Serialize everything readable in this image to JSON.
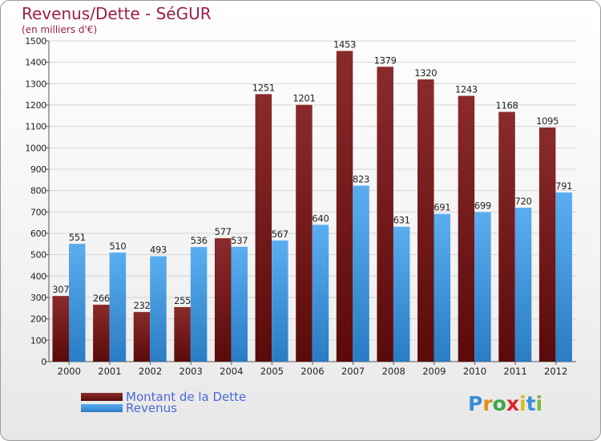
{
  "title": "Revenus/Dette - SéGUR",
  "subtitle": "(en milliers d'€)",
  "colors": {
    "debt_top": "#8a2b2b",
    "debt_bottom": "#5a0a0a",
    "revenue_top": "#5aaef0",
    "revenue_bottom": "#2a7cc4",
    "title": "#9b1f4a",
    "legend_text": "#4a68d8"
  },
  "logo": {
    "letters": [
      "P",
      "r",
      "o",
      "x",
      "i",
      "t",
      "i"
    ],
    "colors": [
      "#3a8fd6",
      "#e08a1e",
      "#3aa84a",
      "#d8252b",
      "#e0b81e",
      "#3a8fd6",
      "#7ab83a"
    ]
  },
  "chart_data": {
    "type": "bar",
    "categories": [
      "2000",
      "2001",
      "2002",
      "2003",
      "2004",
      "2005",
      "2006",
      "2007",
      "2008",
      "2009",
      "2010",
      "2011",
      "2012"
    ],
    "series": [
      {
        "name": "Montant de la Dette",
        "values": [
          307,
          266,
          232,
          255,
          577,
          1251,
          1201,
          1453,
          1379,
          1320,
          1243,
          1168,
          1095
        ]
      },
      {
        "name": "Revenus",
        "values": [
          551,
          510,
          493,
          536,
          537,
          567,
          640,
          823,
          631,
          691,
          699,
          720,
          791
        ]
      }
    ],
    "y_ticks": [
      0,
      100,
      200,
      300,
      400,
      500,
      600,
      700,
      800,
      900,
      1000,
      1100,
      1200,
      1300,
      1400,
      1500
    ],
    "ylim": [
      0,
      1500
    ],
    "grid": true,
    "legend_position": "bottom-left"
  }
}
